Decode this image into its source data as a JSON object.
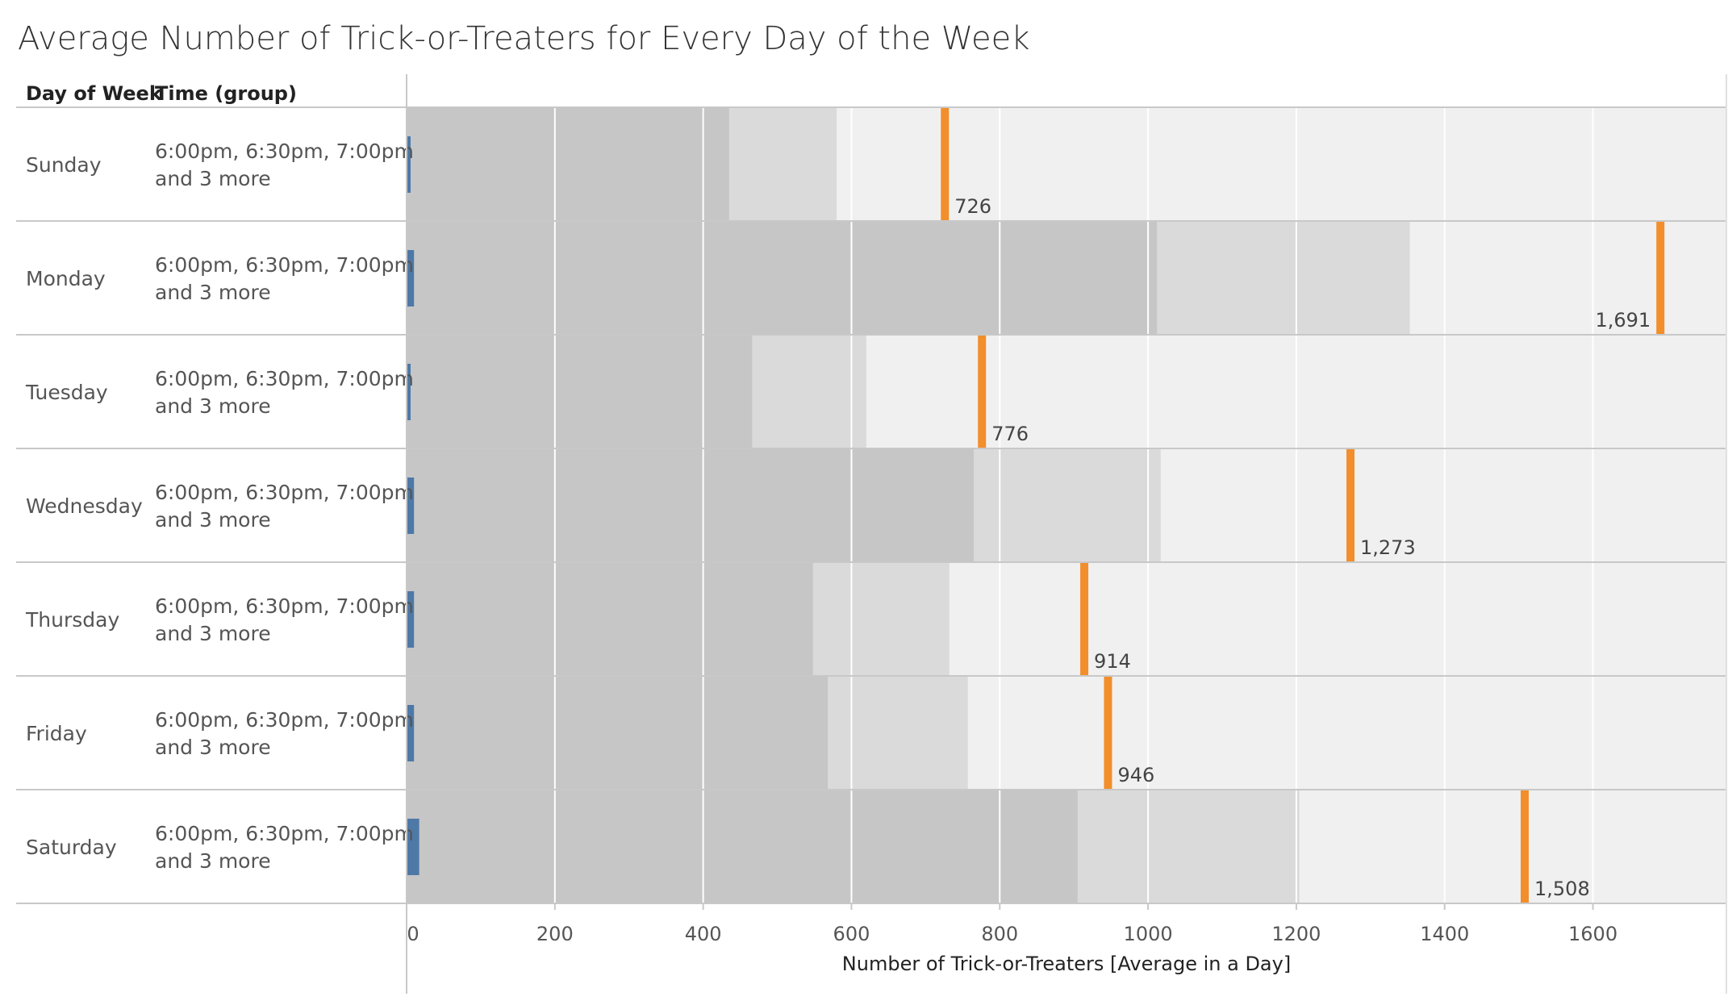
{
  "chart_data": {
    "type": "bar",
    "title": "Average Number of Trick-or-Treaters for Every Day of the Week",
    "row_headers": [
      "Day of Week",
      "Time (group)"
    ],
    "xlabel": "Number of Trick-or-Treaters [Average in a Day]",
    "xlim": [
      0,
      1780
    ],
    "xticks": [
      0,
      200,
      400,
      600,
      800,
      1000,
      1200,
      1400,
      1600
    ],
    "grid": true,
    "categories": [
      "Sunday",
      "Monday",
      "Tuesday",
      "Wednesday",
      "Thursday",
      "Friday",
      "Saturday"
    ],
    "time_groups": [
      "6:00pm, 6:30pm, 7:00pm|and 3 more",
      "6:00pm, 6:30pm, 7:00pm|and 3 more",
      "6:00pm, 6:30pm, 7:00pm|and 3 more",
      "6:00pm, 6:30pm, 7:00pm|and 3 more",
      "6:00pm, 6:30pm, 7:00pm|and 3 more",
      "6:00pm, 6:30pm, 7:00pm|and 3 more",
      "6:00pm, 6:30pm, 7:00pm|and 3 more"
    ],
    "series": [
      {
        "role": "bar",
        "values": [
          5,
          10,
          5,
          10,
          10,
          10,
          17
        ]
      },
      {
        "role": "reference_line",
        "values": [
          726,
          1691,
          776,
          1273,
          914,
          946,
          1508
        ],
        "labels": [
          "726",
          "1,691",
          "776",
          "1,273",
          "914",
          "946",
          "1,508"
        ]
      }
    ],
    "bands": [
      [
        435,
        580
      ],
      [
        1012,
        1353
      ],
      [
        466,
        620
      ],
      [
        765,
        1017
      ],
      [
        548,
        732
      ],
      [
        568,
        757
      ],
      [
        905,
        1204
      ]
    ],
    "colors": {
      "bar": "#4e79a7",
      "reference_line": "#f28e2b",
      "band_dark": "#c6c6c6",
      "band_mid": "#dadada",
      "band_light": "#f0f0f0",
      "grid": "#ffffff"
    }
  }
}
